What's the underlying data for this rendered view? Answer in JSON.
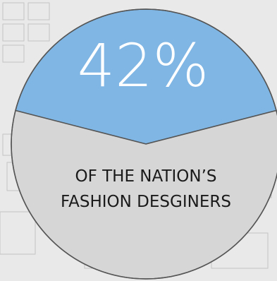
{
  "chart_data": {
    "type": "pie",
    "categories": [
      "highlighted",
      "rest"
    ],
    "values": [
      42,
      58
    ],
    "value_label": "42%",
    "caption_lines": [
      "OF THE NATION’S",
      "FASHION DESGINERS"
    ],
    "colors": {
      "highlight": "#7fb6e4",
      "rest": "#d6d6d6",
      "outline": "#555555",
      "background": "#e9e9e9",
      "sketch_lines": "#c4c4c4"
    }
  }
}
